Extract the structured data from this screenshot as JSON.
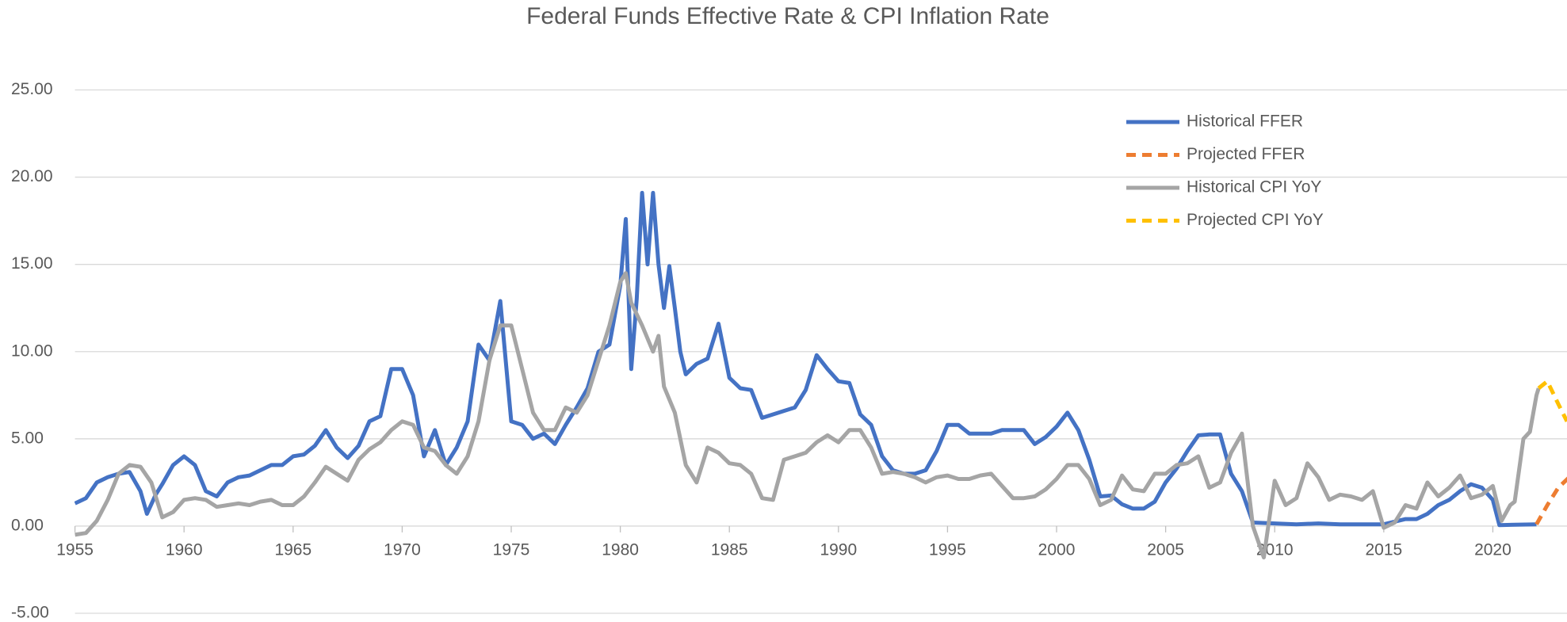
{
  "chart_data": {
    "type": "line",
    "title": "Federal Funds Effective Rate & CPI Inflation Rate",
    "xlim": [
      1955,
      2023.4
    ],
    "xticks": [
      1955,
      1960,
      1965,
      1970,
      1975,
      1980,
      1985,
      1990,
      1995,
      2000,
      2005,
      2010,
      2015,
      2020
    ],
    "ylim": [
      -5,
      25
    ],
    "yticks": [
      {
        "value": -5,
        "label": "-5.00"
      },
      {
        "value": 0,
        "label": "0.00"
      },
      {
        "value": 5,
        "label": "5.00"
      },
      {
        "value": 10,
        "label": "10.00"
      },
      {
        "value": 15,
        "label": "15.00"
      },
      {
        "value": 20,
        "label": "20.00"
      },
      {
        "value": 25,
        "label": "25.00"
      }
    ],
    "grid": true,
    "legend": "top-right",
    "series": [
      {
        "name": "Historical FFER",
        "color": "#4472c4",
        "dashed": false,
        "x": [
          1955,
          1955.5,
          1956,
          1956.5,
          1957,
          1957.5,
          1958,
          1958.3,
          1958.7,
          1959,
          1959.5,
          1960,
          1960.5,
          1961,
          1961.5,
          1962,
          1962.5,
          1963,
          1963.5,
          1964,
          1964.5,
          1965,
          1965.5,
          1966,
          1966.5,
          1967,
          1967.5,
          1968,
          1968.5,
          1969,
          1969.5,
          1970,
          1970.5,
          1971,
          1971.5,
          1972,
          1972.5,
          1973,
          1973.5,
          1974,
          1974.5,
          1975,
          1975.5,
          1976,
          1976.5,
          1977,
          1977.5,
          1978,
          1978.5,
          1979,
          1979.5,
          1980,
          1980.25,
          1980.5,
          1980.75,
          1981,
          1981.25,
          1981.5,
          1981.75,
          1982,
          1982.25,
          1982.5,
          1982.75,
          1983,
          1983.5,
          1984,
          1984.5,
          1985,
          1985.5,
          1986,
          1986.5,
          1987,
          1987.5,
          1988,
          1988.5,
          1989,
          1989.5,
          1990,
          1990.5,
          1991,
          1991.5,
          1992,
          1992.5,
          1993,
          1993.5,
          1994,
          1994.5,
          1995,
          1995.5,
          1996,
          1996.5,
          1997,
          1997.5,
          1998,
          1998.5,
          1999,
          1999.5,
          2000,
          2000.5,
          2001,
          2001.5,
          2002,
          2002.5,
          2003,
          2003.5,
          2004,
          2004.5,
          2005,
          2005.5,
          2006,
          2006.5,
          2007,
          2007.5,
          2008,
          2008.5,
          2009,
          2010,
          2011,
          2012,
          2013,
          2014,
          2015,
          2016,
          2016.5,
          2017,
          2017.5,
          2018,
          2018.5,
          2019,
          2019.5,
          2020,
          2020.3,
          2021,
          2022
        ],
        "values": [
          1.3,
          1.6,
          2.5,
          2.8,
          3.0,
          3.1,
          2.0,
          0.7,
          1.8,
          2.4,
          3.5,
          4.0,
          3.5,
          2.0,
          1.7,
          2.5,
          2.8,
          2.9,
          3.2,
          3.5,
          3.5,
          4.0,
          4.1,
          4.6,
          5.5,
          4.5,
          3.9,
          4.6,
          6.0,
          6.3,
          9.0,
          9.0,
          7.5,
          4.0,
          5.5,
          3.5,
          4.5,
          6.0,
          10.4,
          9.5,
          12.9,
          6.0,
          5.8,
          5.0,
          5.3,
          4.7,
          5.8,
          6.8,
          7.9,
          10.0,
          10.4,
          13.8,
          17.6,
          9.0,
          13.0,
          19.1,
          15.0,
          19.1,
          15.0,
          12.5,
          14.9,
          12.5,
          10.0,
          8.7,
          9.3,
          9.6,
          11.6,
          8.5,
          7.9,
          7.8,
          6.2,
          6.4,
          6.6,
          6.8,
          7.8,
          9.8,
          9.0,
          8.3,
          8.2,
          6.4,
          5.8,
          4.0,
          3.2,
          3.0,
          3.0,
          3.2,
          4.3,
          5.8,
          5.8,
          5.3,
          5.3,
          5.3,
          5.5,
          5.5,
          5.5,
          4.7,
          5.1,
          5.7,
          6.5,
          5.5,
          3.8,
          1.7,
          1.75,
          1.25,
          1.0,
          1.0,
          1.4,
          2.5,
          3.3,
          4.3,
          5.2,
          5.25,
          5.25,
          3.0,
          2.0,
          0.2,
          0.15,
          0.1,
          0.15,
          0.1,
          0.1,
          0.1,
          0.4,
          0.4,
          0.7,
          1.2,
          1.5,
          2.0,
          2.4,
          2.2,
          1.5,
          0.05,
          0.08,
          0.1
        ]
      },
      {
        "name": "Projected FFER",
        "color": "#ed7d31",
        "dashed": true,
        "x": [
          2022,
          2022.5,
          2023,
          2023.5
        ],
        "values": [
          0.1,
          1.2,
          2.2,
          2.8
        ]
      },
      {
        "name": "Historical CPI YoY",
        "color": "#a5a5a5",
        "dashed": false,
        "x": [
          1955,
          1955.5,
          1956,
          1956.5,
          1957,
          1957.5,
          1958,
          1958.5,
          1959,
          1959.5,
          1960,
          1960.5,
          1961,
          1961.5,
          1962,
          1962.5,
          1963,
          1963.5,
          1964,
          1964.5,
          1965,
          1965.5,
          1966,
          1966.5,
          1967,
          1967.5,
          1968,
          1968.5,
          1969,
          1969.5,
          1970,
          1970.5,
          1971,
          1971.5,
          1972,
          1972.5,
          1973,
          1973.5,
          1974,
          1974.5,
          1975,
          1975.5,
          1976,
          1976.5,
          1977,
          1977.5,
          1978,
          1978.5,
          1979,
          1979.5,
          1980,
          1980.25,
          1980.5,
          1981,
          1981.5,
          1981.75,
          1982,
          1982.5,
          1983,
          1983.5,
          1984,
          1984.5,
          1985,
          1985.5,
          1986,
          1986.5,
          1987,
          1987.5,
          1988,
          1988.5,
          1989,
          1989.5,
          1990,
          1990.5,
          1991,
          1991.5,
          1992,
          1992.5,
          1993,
          1993.5,
          1994,
          1994.5,
          1995,
          1995.5,
          1996,
          1996.5,
          1997,
          1997.5,
          1998,
          1998.5,
          1999,
          1999.5,
          2000,
          2000.5,
          2001,
          2001.5,
          2002,
          2002.5,
          2003,
          2003.5,
          2004,
          2004.5,
          2005,
          2005.5,
          2006,
          2006.5,
          2007,
          2007.5,
          2008,
          2008.5,
          2009,
          2009.5,
          2010,
          2010.5,
          2011,
          2011.5,
          2012,
          2012.5,
          2013,
          2013.5,
          2014,
          2014.5,
          2015,
          2015.5,
          2016,
          2016.5,
          2017,
          2017.5,
          2018,
          2018.5,
          2019,
          2019.5,
          2020,
          2020.4,
          2020.8,
          2021,
          2021.4,
          2021.7,
          2022,
          2022.1
        ],
        "values": [
          -0.5,
          -0.4,
          0.3,
          1.5,
          3.0,
          3.5,
          3.4,
          2.5,
          0.5,
          0.8,
          1.5,
          1.6,
          1.5,
          1.1,
          1.2,
          1.3,
          1.2,
          1.4,
          1.5,
          1.2,
          1.2,
          1.7,
          2.5,
          3.4,
          3.0,
          2.6,
          3.8,
          4.4,
          4.8,
          5.5,
          6.0,
          5.8,
          4.5,
          4.3,
          3.5,
          3.0,
          4.0,
          6.0,
          9.5,
          11.5,
          11.5,
          9.0,
          6.5,
          5.5,
          5.5,
          6.8,
          6.5,
          7.5,
          9.5,
          11.5,
          14.0,
          14.5,
          12.8,
          11.5,
          10.0,
          10.9,
          8.0,
          6.5,
          3.5,
          2.5,
          4.5,
          4.2,
          3.6,
          3.5,
          3.0,
          1.6,
          1.5,
          3.8,
          4.0,
          4.2,
          4.8,
          5.2,
          4.8,
          5.5,
          5.5,
          4.5,
          3.0,
          3.1,
          3.0,
          2.8,
          2.5,
          2.8,
          2.9,
          2.7,
          2.7,
          2.9,
          3.0,
          2.3,
          1.6,
          1.6,
          1.7,
          2.1,
          2.7,
          3.5,
          3.5,
          2.7,
          1.2,
          1.5,
          2.9,
          2.1,
          2.0,
          3.0,
          3.0,
          3.5,
          3.6,
          4.0,
          2.2,
          2.5,
          4.2,
          5.3,
          0.0,
          -1.8,
          2.6,
          1.2,
          1.6,
          3.6,
          2.8,
          1.5,
          1.8,
          1.7,
          1.5,
          2.0,
          -0.1,
          0.2,
          1.2,
          1.0,
          2.5,
          1.7,
          2.2,
          2.9,
          1.6,
          1.8,
          2.3,
          0.3,
          1.2,
          1.4,
          5.0,
          5.4,
          7.5,
          7.9
        ]
      },
      {
        "name": "Projected CPI YoY",
        "color": "#ffc000",
        "dashed": true,
        "x": [
          2022.1,
          2022.5,
          2023,
          2023.4
        ],
        "values": [
          7.9,
          8.3,
          7.0,
          6.0
        ]
      }
    ]
  }
}
